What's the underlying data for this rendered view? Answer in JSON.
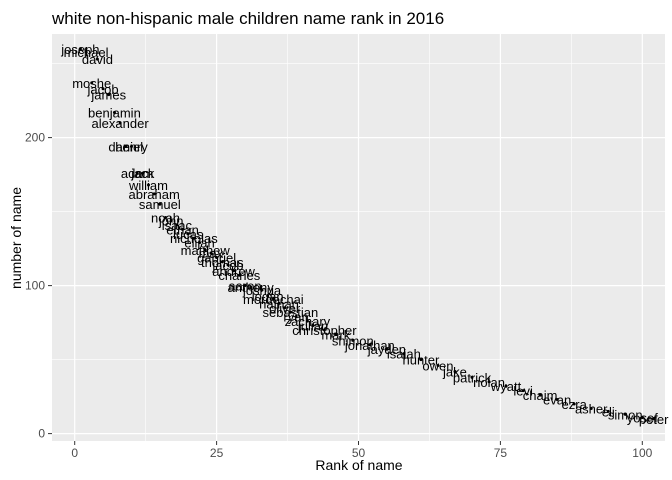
{
  "chart_data": {
    "type": "scatter",
    "title": "white non-hispanic male children name rank in 2016",
    "xlabel": "Rank of name",
    "ylabel": "number of name",
    "xlim": [
      -4,
      104
    ],
    "ylim": [
      -5,
      270
    ],
    "x_ticks": [
      0,
      25,
      50,
      75,
      100
    ],
    "y_ticks": [
      0,
      100,
      200
    ],
    "grid": true,
    "background": "#ebebeb",
    "grid_color": "#ffffff",
    "labeled_points": [
      {
        "rank": 1,
        "count": 260,
        "name": "joseph"
      },
      {
        "rank": 2,
        "count": 258,
        "name": "michael"
      },
      {
        "rank": 4,
        "count": 253,
        "name": "david"
      },
      {
        "rank": 3,
        "count": 237,
        "name": "moshe"
      },
      {
        "rank": 5,
        "count": 233,
        "name": "jacob"
      },
      {
        "rank": 6,
        "count": 229,
        "name": "james"
      },
      {
        "rank": 7,
        "count": 217,
        "name": "benjamin"
      },
      {
        "rank": 8,
        "count": 210,
        "name": "alexander"
      },
      {
        "rank": 9,
        "count": 194,
        "name": "daniel"
      },
      {
        "rank": 10,
        "count": 194,
        "name": "henry"
      },
      {
        "rank": 11,
        "count": 176,
        "name": "adam"
      },
      {
        "rank": 12,
        "count": 176,
        "name": "jack"
      },
      {
        "rank": 13,
        "count": 168,
        "name": "william"
      },
      {
        "rank": 14,
        "count": 162,
        "name": "abraham"
      },
      {
        "rank": 15,
        "count": 155,
        "name": "samuel"
      },
      {
        "rank": 16,
        "count": 146,
        "name": "noah"
      },
      {
        "rank": 17,
        "count": 144,
        "name": "john"
      },
      {
        "rank": 18,
        "count": 141,
        "name": "isaac"
      },
      {
        "rank": 19,
        "count": 138,
        "name": "ethan"
      },
      {
        "rank": 20,
        "count": 135,
        "name": "lucas"
      },
      {
        "rank": 21,
        "count": 132,
        "name": "nicholas"
      },
      {
        "rank": 22,
        "count": 129,
        "name": "elijah"
      },
      {
        "rank": 23,
        "count": 124,
        "name": "matthew"
      },
      {
        "rank": 24,
        "count": 122,
        "name": "max"
      },
      {
        "rank": 25,
        "count": 119,
        "name": "gabriel"
      },
      {
        "rank": 26,
        "count": 116,
        "name": "thomas"
      },
      {
        "rank": 27,
        "count": 114,
        "name": "jacob"
      },
      {
        "rank": 28,
        "count": 110,
        "name": "andrew"
      },
      {
        "rank": 29,
        "count": 107,
        "name": "charles"
      },
      {
        "rank": 30,
        "count": 100,
        "name": "aaron"
      },
      {
        "rank": 31,
        "count": 99,
        "name": "anthony"
      },
      {
        "rank": 33,
        "count": 97,
        "name": "joshua"
      },
      {
        "rank": 34,
        "count": 93,
        "name": "logan"
      },
      {
        "rank": 35,
        "count": 91,
        "name": "mordechai"
      },
      {
        "rank": 36,
        "count": 88,
        "name": "nathan"
      },
      {
        "rank": 37,
        "count": 85,
        "name": "oliver"
      },
      {
        "rank": 38,
        "count": 82,
        "name": "sebastian"
      },
      {
        "rank": 39,
        "count": 79,
        "name": "ryan"
      },
      {
        "rank": 41,
        "count": 76,
        "name": "zachary"
      },
      {
        "rank": 42,
        "count": 73,
        "name": "julian"
      },
      {
        "rank": 44,
        "count": 70,
        "name": "christopher"
      },
      {
        "rank": 46,
        "count": 67,
        "name": "mark"
      },
      {
        "rank": 49,
        "count": 63,
        "name": "shimon"
      },
      {
        "rank": 52,
        "count": 60,
        "name": "jonathan"
      },
      {
        "rank": 55,
        "count": 57,
        "name": "jayden"
      },
      {
        "rank": 58,
        "count": 54,
        "name": "isaiah"
      },
      {
        "rank": 61,
        "count": 50,
        "name": "hunter"
      },
      {
        "rank": 64,
        "count": 46,
        "name": "owen"
      },
      {
        "rank": 67,
        "count": 42,
        "name": "jake"
      },
      {
        "rank": 70,
        "count": 38,
        "name": "patrick"
      },
      {
        "rank": 73,
        "count": 35,
        "name": "nolan"
      },
      {
        "rank": 76,
        "count": 32,
        "name": "wyatt"
      },
      {
        "rank": 79,
        "count": 29,
        "name": "levi"
      },
      {
        "rank": 82,
        "count": 26,
        "name": "chaim"
      },
      {
        "rank": 85,
        "count": 23,
        "name": "evan"
      },
      {
        "rank": 88,
        "count": 20,
        "name": "ezra"
      },
      {
        "rank": 91,
        "count": 17,
        "name": "asher"
      },
      {
        "rank": 94,
        "count": 15,
        "name": "eli"
      },
      {
        "rank": 97,
        "count": 13,
        "name": "simon"
      },
      {
        "rank": 100,
        "count": 11,
        "name": "yosef"
      },
      {
        "rank": 102,
        "count": 10,
        "name": "peter"
      }
    ]
  }
}
